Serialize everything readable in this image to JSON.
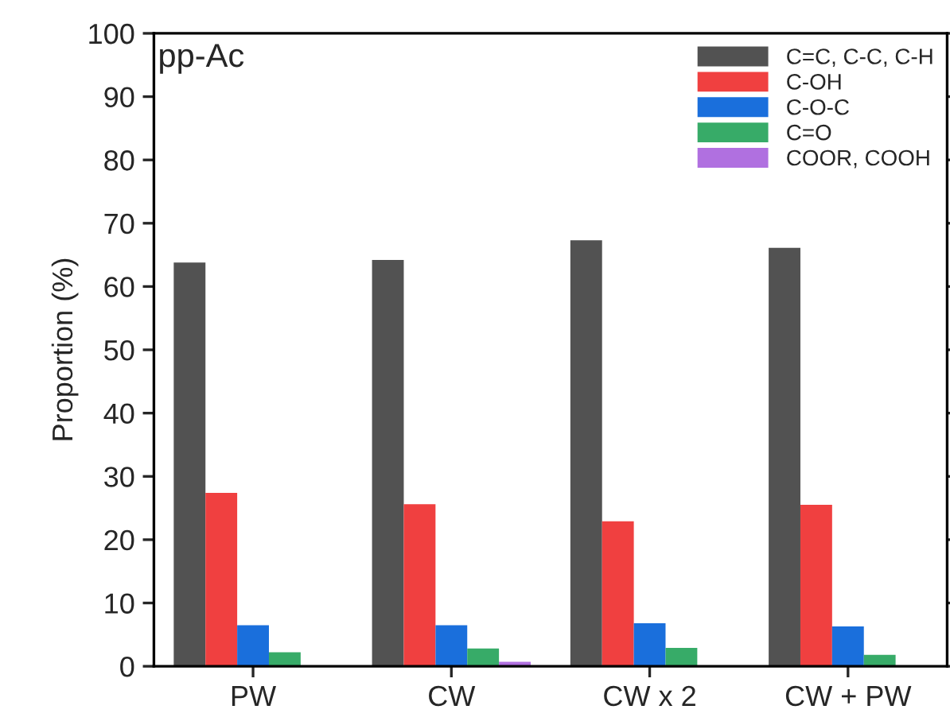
{
  "chart_data": {
    "type": "bar",
    "ylabel": "Proportion (%)",
    "annotations": [
      "pp-Ac"
    ],
    "categories": [
      "PW",
      "CW",
      "CW x 2",
      "CW + PW"
    ],
    "series": [
      {
        "name": "C=C, C-C, C-H",
        "color": "#525252",
        "values": [
          63.8,
          64.2,
          67.3,
          66.1
        ]
      },
      {
        "name": "C-OH",
        "color": "#f04040",
        "values": [
          27.4,
          25.6,
          22.9,
          25.5
        ]
      },
      {
        "name": "C-O-C",
        "color": "#1a6fdc",
        "values": [
          6.5,
          6.5,
          6.8,
          6.3
        ]
      },
      {
        "name": "C=O",
        "color": "#37ab68",
        "values": [
          2.2,
          2.8,
          2.9,
          1.8
        ]
      },
      {
        "name": "COOR, COOH",
        "color": "#b070e0",
        "values": [
          null,
          0.7,
          null,
          null
        ]
      }
    ],
    "ylim": [
      0,
      100
    ],
    "yticks": [
      0,
      10,
      20,
      30,
      40,
      50,
      60,
      70,
      80,
      90,
      100
    ],
    "grid": false,
    "legend": "top right"
  }
}
